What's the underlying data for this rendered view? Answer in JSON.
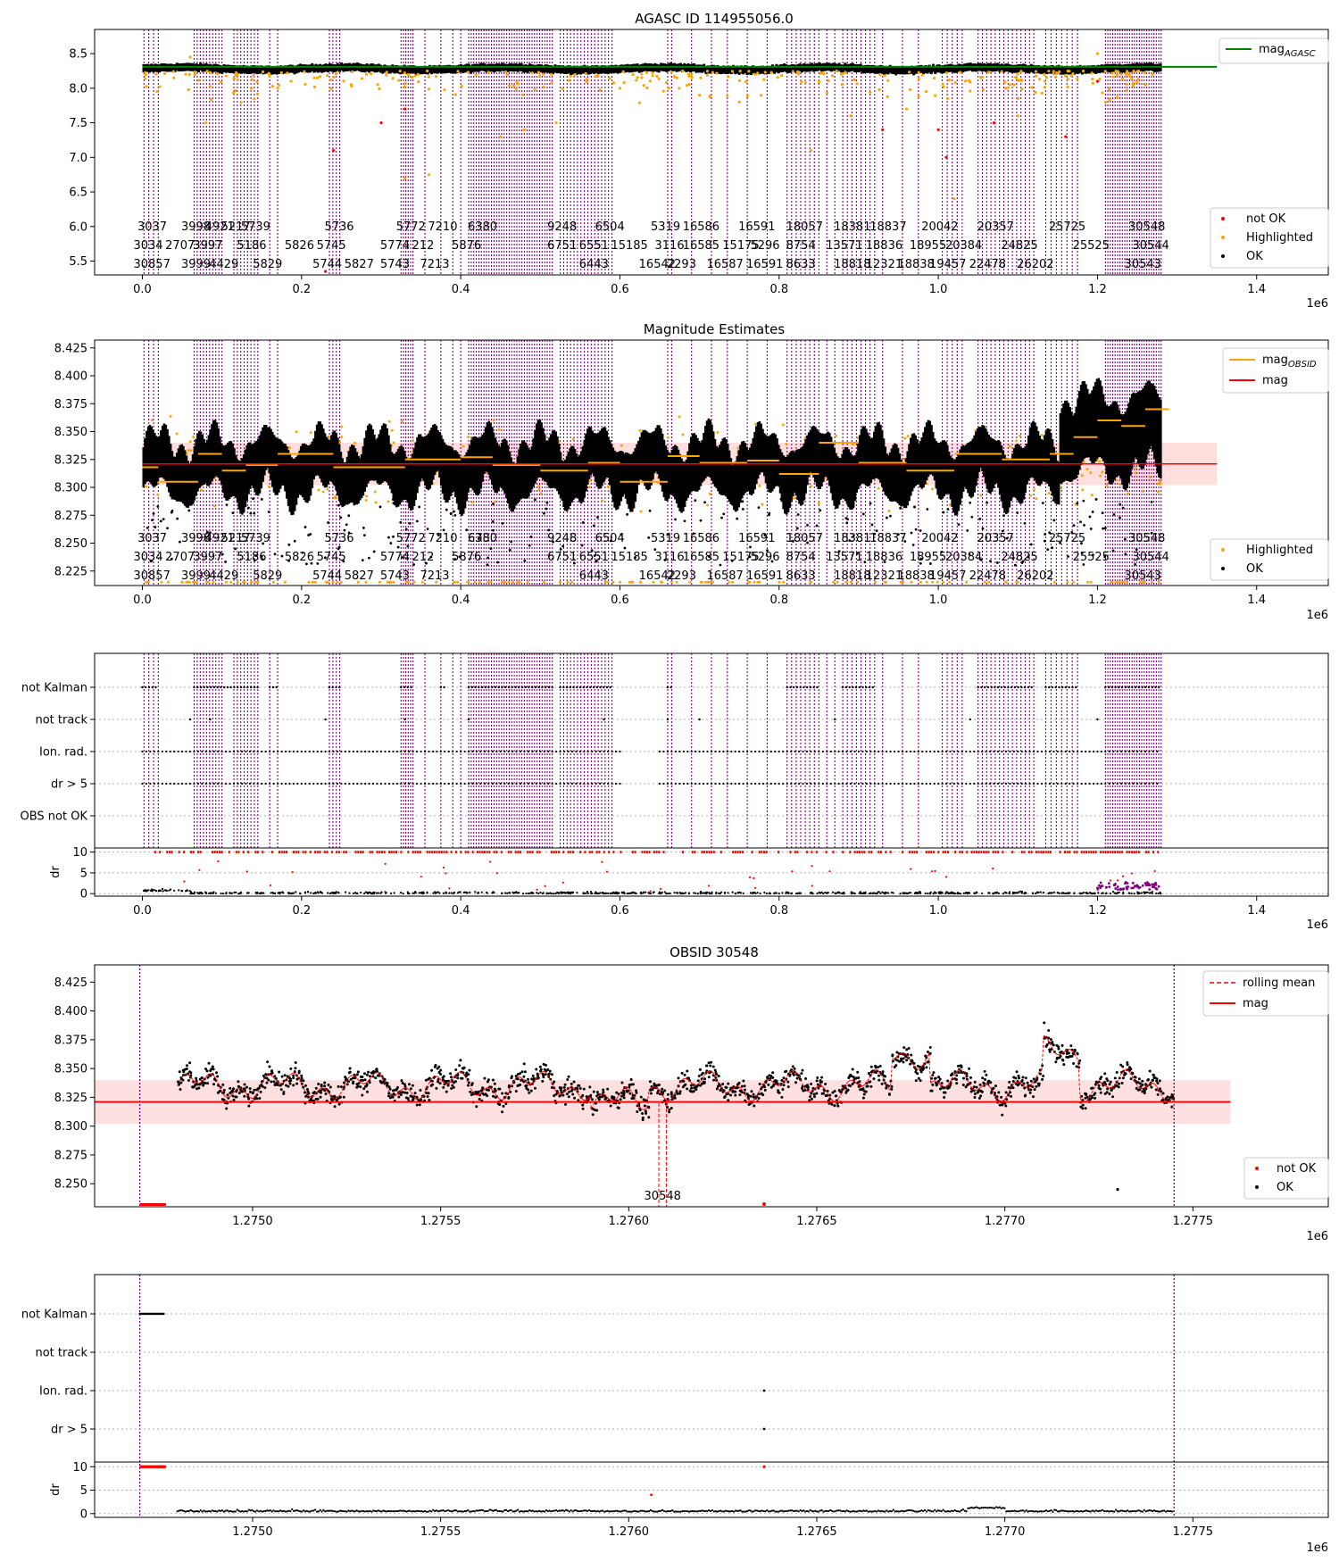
{
  "figure": "agasc-star-report",
  "chart_data": [
    {
      "id": "panel-agasc",
      "type": "scatter",
      "title": "AGASC ID 114955056.0",
      "xlabel": "",
      "ylabel": "",
      "x_offset_label": "1e6",
      "xlim": [
        -60000,
        1490000
      ],
      "ylim": [
        5.3,
        8.85
      ],
      "xticks": [
        0.0,
        0.2,
        0.4,
        0.6,
        0.8,
        1.0,
        1.2,
        1.4
      ],
      "yticks": [
        5.5,
        6.0,
        6.5,
        7.0,
        7.5,
        8.0,
        8.5
      ],
      "ref_line": {
        "name": "mag_AGASC",
        "y": 8.31,
        "color": "#008000",
        "x": [
          0,
          1350000
        ]
      },
      "band": {
        "y": [
          8.25,
          8.37
        ],
        "color": "#000000"
      },
      "series": [
        {
          "name": "not OK",
          "color": "#ff0000",
          "points": [
            [
              300000,
              7.5
            ],
            [
              240000,
              7.1
            ],
            [
              330000,
              7.7
            ],
            [
              1000000,
              7.4
            ],
            [
              1070000,
              7.5
            ],
            [
              930000,
              7.4
            ],
            [
              1010000,
              7.0
            ],
            [
              1160000,
              7.3
            ],
            [
              230000,
              5.35
            ],
            [
              1200000,
              8.1
            ]
          ]
        },
        {
          "name": "Highlighted",
          "color": "#ffa500",
          "points": [
            [
              60000,
              8.45
            ],
            [
              120000,
              8.2
            ],
            [
              330000,
              6.7
            ],
            [
              360000,
              6.75
            ],
            [
              450000,
              7.3
            ],
            [
              480000,
              7.4
            ],
            [
              520000,
              7.5
            ],
            [
              600000,
              8.0
            ],
            [
              700000,
              7.9
            ],
            [
              750000,
              7.8
            ],
            [
              840000,
              7.1
            ],
            [
              890000,
              7.6
            ],
            [
              960000,
              7.7
            ],
            [
              1020000,
              6.4
            ],
            [
              1100000,
              7.6
            ],
            [
              1200000,
              8.5
            ],
            [
              1210000,
              7.8
            ],
            [
              1240000,
              8.2
            ],
            [
              80000,
              7.5
            ],
            [
              170000,
              8.0
            ]
          ]
        },
        {
          "name": "OK",
          "color": "#000000",
          "points": []
        }
      ],
      "legend": {
        "position": "lower-right",
        "entries": [
          "not OK",
          "Highlighted",
          "OK"
        ]
      },
      "legend_upper": {
        "position": "upper-right",
        "entries": [
          "mag_AGASC"
        ]
      }
    },
    {
      "id": "panel-mag",
      "type": "scatter",
      "title": "Magnitude Estimates",
      "xlabel": "",
      "ylabel": "",
      "x_offset_label": "1e6",
      "xlim": [
        -60000,
        1490000
      ],
      "ylim": [
        8.212,
        8.432
      ],
      "xticks": [
        0.0,
        0.2,
        0.4,
        0.6,
        0.8,
        1.0,
        1.2,
        1.4
      ],
      "yticks": [
        8.225,
        8.25,
        8.275,
        8.3,
        8.325,
        8.35,
        8.375,
        8.4,
        8.425
      ],
      "mag_line": {
        "name": "mag",
        "y": 8.321,
        "band": [
          8.302,
          8.34
        ],
        "color": "#ff0000",
        "x": [
          0,
          1350000
        ]
      },
      "mag_obsid": {
        "name": "mag_OBSID",
        "color": "#ffa500",
        "steps": [
          [
            0,
            8.318
          ],
          [
            20000,
            8.305
          ],
          [
            70000,
            8.33
          ],
          [
            100000,
            8.315
          ],
          [
            130000,
            8.32
          ],
          [
            170000,
            8.33
          ],
          [
            240000,
            8.318
          ],
          [
            330000,
            8.325
          ],
          [
            400000,
            8.327
          ],
          [
            440000,
            8.32
          ],
          [
            500000,
            8.315
          ],
          [
            560000,
            8.322
          ],
          [
            600000,
            8.305
          ],
          [
            660000,
            8.328
          ],
          [
            700000,
            8.322
          ],
          [
            760000,
            8.324
          ],
          [
            800000,
            8.312
          ],
          [
            850000,
            8.34
          ],
          [
            900000,
            8.322
          ],
          [
            960000,
            8.315
          ],
          [
            1020000,
            8.33
          ],
          [
            1080000,
            8.325
          ],
          [
            1140000,
            8.33
          ],
          [
            1170000,
            8.345
          ],
          [
            1200000,
            8.36
          ],
          [
            1230000,
            8.355
          ],
          [
            1260000,
            8.37
          ],
          [
            1280000,
            8.37
          ]
        ]
      },
      "series": [
        {
          "name": "Highlighted",
          "color": "#ffa500"
        },
        {
          "name": "OK",
          "color": "#000000"
        }
      ],
      "legend": {
        "position": "lower-right",
        "entries": [
          "Highlighted",
          "OK"
        ]
      },
      "legend_upper": {
        "position": "upper-right",
        "entries": [
          "mag_OBSID",
          "mag"
        ]
      }
    },
    {
      "id": "panel-flags",
      "type": "scatter",
      "title": "",
      "xlabel": "",
      "x_offset_label": "1e6",
      "xlim": [
        -60000,
        1490000
      ],
      "xticks": [
        0.0,
        0.2,
        0.4,
        0.6,
        0.8,
        1.0,
        1.2,
        1.4
      ],
      "flag_labels": [
        "not Kalman",
        "not track",
        "Ion. rad.",
        "dr > 5",
        "OBS not OK"
      ],
      "dr_label": "dr",
      "dr_ticks": [
        0,
        5,
        10
      ]
    },
    {
      "id": "panel-obsid",
      "type": "scatter",
      "title": "OBSID 30548",
      "xlabel": "",
      "ylabel": "",
      "x_offset_label": "1e6",
      "xlim": [
        1274580,
        1277860
      ],
      "ylim": [
        8.23,
        8.44
      ],
      "xticks": [
        1.275,
        1.2755,
        1.276,
        1.2765,
        1.277,
        1.2775
      ],
      "yticks": [
        8.25,
        8.275,
        8.3,
        8.325,
        8.35,
        8.375,
        8.4,
        8.425
      ],
      "obs_label": "30548",
      "mag_line": {
        "name": "mag",
        "y": 8.321,
        "band": [
          8.302,
          8.34
        ],
        "color": "#ff0000"
      },
      "series": [
        {
          "name": "rolling mean",
          "color": "#ff0000"
        },
        {
          "name": "mag",
          "color": "#ff0000"
        },
        {
          "name": "not OK",
          "color": "#ff0000"
        },
        {
          "name": "OK",
          "color": "#000000"
        }
      ],
      "legend": {
        "position": "lower-right",
        "entries": [
          "not OK",
          "OK"
        ]
      },
      "legend_upper": {
        "position": "upper-right",
        "entries": [
          "rolling mean",
          "mag"
        ]
      }
    },
    {
      "id": "panel-obsid-flags",
      "type": "scatter",
      "title": "",
      "xlabel": "",
      "x_offset_label": "1e6",
      "xlim": [
        1274580,
        1277860
      ],
      "xticks": [
        1.275,
        1.2755,
        1.276,
        1.2765,
        1.277,
        1.2775
      ],
      "flag_labels": [
        "not Kalman",
        "not track",
        "Ion. rad.",
        "dr > 5"
      ],
      "dr_label": "dr",
      "dr_ticks": [
        0,
        5,
        10
      ]
    }
  ],
  "obsid_labels": [
    {
      "x": 5000,
      "row": 0,
      "t": "3037"
    },
    {
      "x": 60000,
      "row": 0,
      "t": "3998"
    },
    {
      "x": 90000,
      "row": 0,
      "t": "4921"
    },
    {
      "x": 110000,
      "row": 0,
      "t": "5217"
    },
    {
      "x": 135000,
      "row": 0,
      "t": "5739"
    },
    {
      "x": 240000,
      "row": 0,
      "t": "5736"
    },
    {
      "x": 330000,
      "row": 0,
      "t": "5772"
    },
    {
      "x": 370000,
      "row": 0,
      "t": "7210"
    },
    {
      "x": 420000,
      "row": 0,
      "t": "6380"
    },
    {
      "x": 520000,
      "row": 0,
      "t": "9248"
    },
    {
      "x": 580000,
      "row": 0,
      "t": "6504"
    },
    {
      "x": 650000,
      "row": 0,
      "t": "5319"
    },
    {
      "x": 690000,
      "row": 0,
      "t": "16586"
    },
    {
      "x": 760000,
      "row": 0,
      "t": "16591"
    },
    {
      "x": 820000,
      "row": 0,
      "t": "18057"
    },
    {
      "x": 880000,
      "row": 0,
      "t": "18381"
    },
    {
      "x": 925000,
      "row": 0,
      "t": "18837"
    },
    {
      "x": 990000,
      "row": 0,
      "t": "20042"
    },
    {
      "x": 1060000,
      "row": 0,
      "t": "20357"
    },
    {
      "x": 1150000,
      "row": 0,
      "t": "25725"
    },
    {
      "x": 1250000,
      "row": 0,
      "t": "30548"
    },
    {
      "x": 0,
      "row": 1,
      "t": "3034"
    },
    {
      "x": 40000,
      "row": 1,
      "t": "2707"
    },
    {
      "x": 75000,
      "row": 1,
      "t": "3997"
    },
    {
      "x": 130000,
      "row": 1,
      "t": "5186"
    },
    {
      "x": 190000,
      "row": 1,
      "t": "5826"
    },
    {
      "x": 230000,
      "row": 1,
      "t": "5745"
    },
    {
      "x": 310000,
      "row": 1,
      "t": "5774"
    },
    {
      "x": 350000,
      "row": 1,
      "t": "212"
    },
    {
      "x": 400000,
      "row": 1,
      "t": "5876"
    },
    {
      "x": 520000,
      "row": 1,
      "t": "6751"
    },
    {
      "x": 560000,
      "row": 1,
      "t": "6551"
    },
    {
      "x": 600000,
      "row": 1,
      "t": "15185"
    },
    {
      "x": 655000,
      "row": 1,
      "t": "3116"
    },
    {
      "x": 690000,
      "row": 1,
      "t": "16585"
    },
    {
      "x": 740000,
      "row": 1,
      "t": "15175"
    },
    {
      "x": 775000,
      "row": 1,
      "t": "5296"
    },
    {
      "x": 820000,
      "row": 1,
      "t": "8754"
    },
    {
      "x": 870000,
      "row": 1,
      "t": "13571"
    },
    {
      "x": 920000,
      "row": 1,
      "t": "18836"
    },
    {
      "x": 975000,
      "row": 1,
      "t": "18955"
    },
    {
      "x": 1020000,
      "row": 1,
      "t": "20384"
    },
    {
      "x": 1090000,
      "row": 1,
      "t": "24825"
    },
    {
      "x": 1180000,
      "row": 1,
      "t": "25525"
    },
    {
      "x": 1255000,
      "row": 1,
      "t": "30544"
    },
    {
      "x": 0,
      "row": 2,
      "t": "30857"
    },
    {
      "x": 60000,
      "row": 2,
      "t": "3999"
    },
    {
      "x": 95000,
      "row": 2,
      "t": "4429"
    },
    {
      "x": 150000,
      "row": 2,
      "t": "5829"
    },
    {
      "x": 225000,
      "row": 2,
      "t": "5744"
    },
    {
      "x": 265000,
      "row": 2,
      "t": "5827"
    },
    {
      "x": 310000,
      "row": 2,
      "t": "5743"
    },
    {
      "x": 360000,
      "row": 2,
      "t": "7213"
    },
    {
      "x": 560000,
      "row": 2,
      "t": "6443"
    },
    {
      "x": 635000,
      "row": 2,
      "t": "16542"
    },
    {
      "x": 670000,
      "row": 2,
      "t": "2293"
    },
    {
      "x": 720000,
      "row": 2,
      "t": "16587"
    },
    {
      "x": 770000,
      "row": 2,
      "t": "16591"
    },
    {
      "x": 820000,
      "row": 2,
      "t": "8633"
    },
    {
      "x": 880000,
      "row": 2,
      "t": "18818"
    },
    {
      "x": 920000,
      "row": 2,
      "t": "12321"
    },
    {
      "x": 960000,
      "row": 2,
      "t": "18838"
    },
    {
      "x": 1000000,
      "row": 2,
      "t": "19457"
    },
    {
      "x": 1050000,
      "row": 2,
      "t": "22478"
    },
    {
      "x": 1110000,
      "row": 2,
      "t": "26202"
    },
    {
      "x": 1245000,
      "row": 2,
      "t": "30543"
    }
  ]
}
